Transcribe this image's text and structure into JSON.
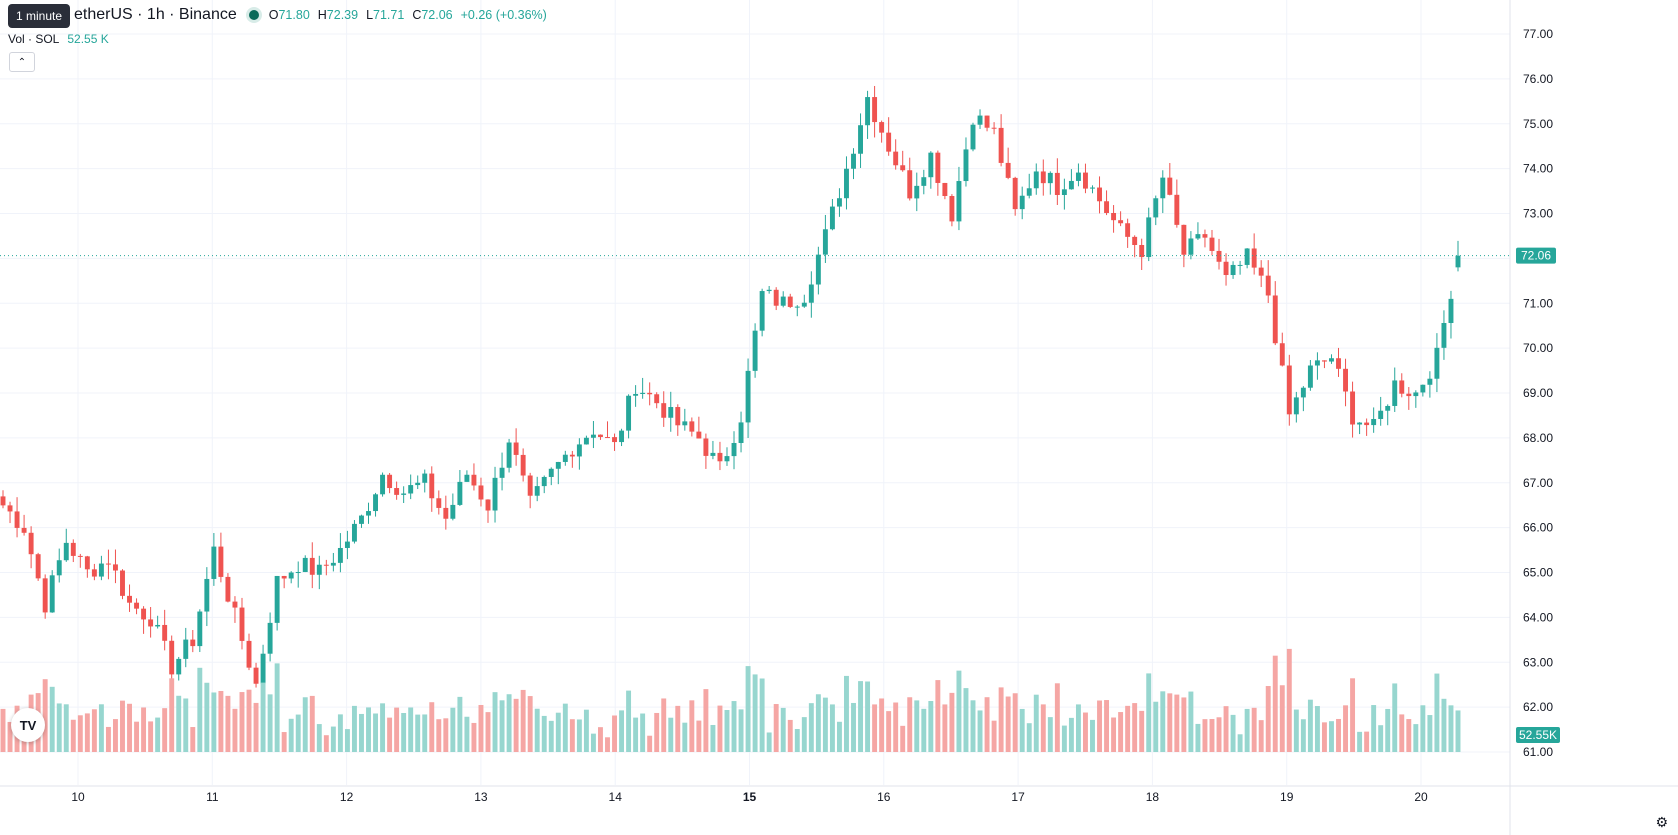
{
  "header": {
    "tooltip": "1 minute",
    "symbol": "etherUS · 1h · Binance",
    "open_label": "O",
    "open": "71.80",
    "high_label": "H",
    "high": "72.39",
    "low_label": "L",
    "low": "71.71",
    "close_label": "C",
    "close": "72.06",
    "change": "+0.26 (+0.36%)",
    "vol_label": "Vol · SOL",
    "vol_value": "52.55 K"
  },
  "colors": {
    "up": "#26a69a",
    "down": "#ef5350",
    "vol_up": "#97d6cf",
    "vol_down": "#f5a6a4",
    "grid": "#f0f3fa"
  },
  "icons": {
    "collapse": "chevron-up-icon",
    "logo": "tradingview-logo-icon",
    "settings": "gear-icon"
  },
  "chart_data": {
    "type": "candlestick",
    "y_ticks": [
      "77.00",
      "76.00",
      "75.00",
      "74.00",
      "73.00",
      "72.00",
      "71.00",
      "70.00",
      "69.00",
      "68.00",
      "67.00",
      "66.00",
      "65.00",
      "64.00",
      "63.00",
      "62.00",
      "61.00"
    ],
    "ylim": [
      61.0,
      77.3
    ],
    "x_ticks": [
      {
        "label": "10",
        "bold": false
      },
      {
        "label": "11",
        "bold": false
      },
      {
        "label": "12",
        "bold": false
      },
      {
        "label": "13",
        "bold": false
      },
      {
        "label": "14",
        "bold": false
      },
      {
        "label": "15",
        "bold": true
      },
      {
        "label": "16",
        "bold": false
      },
      {
        "label": "17",
        "bold": false
      },
      {
        "label": "18",
        "bold": false
      },
      {
        "label": "19",
        "bold": false
      },
      {
        "label": "20",
        "bold": false
      }
    ],
    "last_price": "72.06",
    "last_volume": "52.55 K",
    "anchors": [
      66.5,
      66.0,
      64.3,
      65.7,
      65.0,
      65.3,
      64.3,
      64.0,
      62.9,
      63.5,
      65.5,
      64.0,
      62.5,
      64.8,
      65.2,
      65.0,
      65.5,
      66.2,
      67.2,
      66.8,
      67.0,
      66.2,
      67.2,
      66.5,
      68.0,
      66.5,
      67.2,
      67.8,
      68.2,
      67.8,
      69.2,
      68.8,
      68.3,
      68.0,
      67.3,
      68.5,
      71.2,
      71.0,
      71.2,
      72.5,
      74.0,
      75.6,
      74.5,
      73.5,
      74.3,
      73.0,
      75.2,
      74.8,
      73.0,
      74.0,
      73.6,
      74.0,
      73.3,
      72.6,
      72.2,
      73.8,
      72.1,
      72.5,
      71.5,
      72.0,
      71.2,
      68.5,
      69.5,
      69.8,
      68.5,
      68.2,
      69.2,
      69.0,
      69.8,
      72.06
    ],
    "segments": 69,
    "bars_per_segment": 3,
    "volume_note": "heights decorative"
  }
}
